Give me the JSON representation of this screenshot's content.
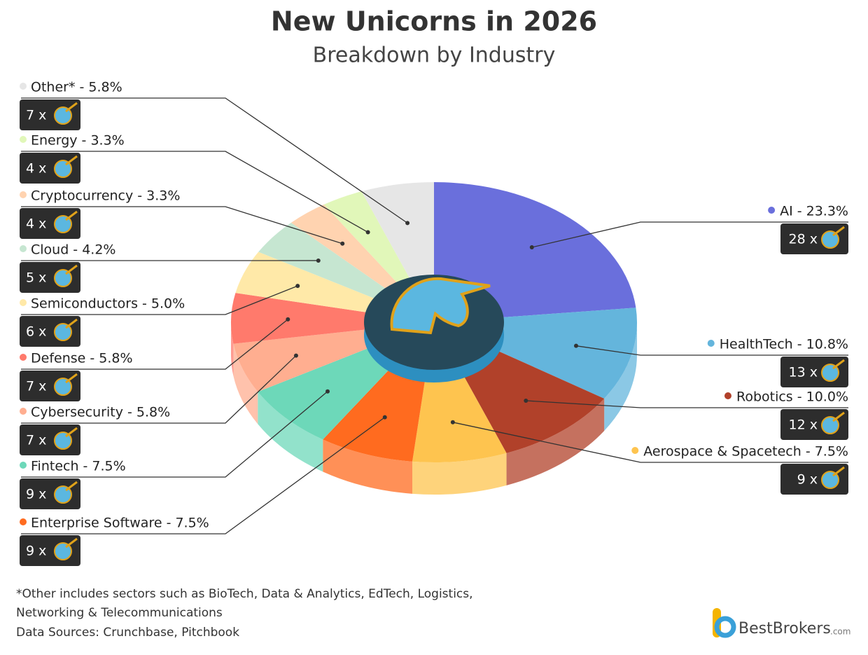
{
  "chart_data": {
    "type": "pie",
    "title": "New Unicorns in 2026",
    "subtitle": "Breakdown by Industry",
    "categories": [
      "AI - 23.3%",
      "HealthTech - 10.8%",
      "Robotics - 10.0%",
      "Aerospace & Spacetech - 7.5%",
      "Enterprise Software - 7.5%",
      "Fintech - 7.5%",
      "Cybersecurity - 5.8%",
      "Defense - 5.8%",
      "Semiconductors - 5.0%",
      "Cloud - 4.2%",
      "Cryptocurrency - 3.3%",
      "Energy - 3.3%",
      "Other* - 5.8%"
    ],
    "values": [
      23.3,
      10.8,
      10.0,
      7.5,
      7.5,
      7.5,
      5.8,
      5.8,
      5.0,
      4.2,
      3.3,
      3.3,
      5.8
    ],
    "colors": [
      "#6a6fdc",
      "#64b5dc",
      "#b1412a",
      "#fec44f",
      "#ff6b1f",
      "#6dd8b9",
      "#ffae90",
      "#ff7a6c",
      "#ffe9a8",
      "#c6e6d1",
      "#ffd3b0",
      "#e1f7b9",
      "#e6e6e6"
    ],
    "counts": [
      28,
      13,
      12,
      9,
      9,
      9,
      7,
      7,
      6,
      5,
      4,
      4,
      7
    ],
    "count_labels": [
      "28 x",
      "13 x",
      "12 x",
      "9 x",
      "9 x",
      "9 x",
      "7 x",
      "7 x",
      "6 x",
      "5 x",
      "4 x",
      "4 x",
      "7 x"
    ],
    "footnotes": [
      "*Other includes sectors such as BioTech, Data & Analytics, EdTech, Logistics,",
      "Networking & Telecommunications",
      "Data Sources: Crunchbase, Pitchbook"
    ],
    "brand": "BestBrokers",
    "brand_suffix": ".com"
  }
}
